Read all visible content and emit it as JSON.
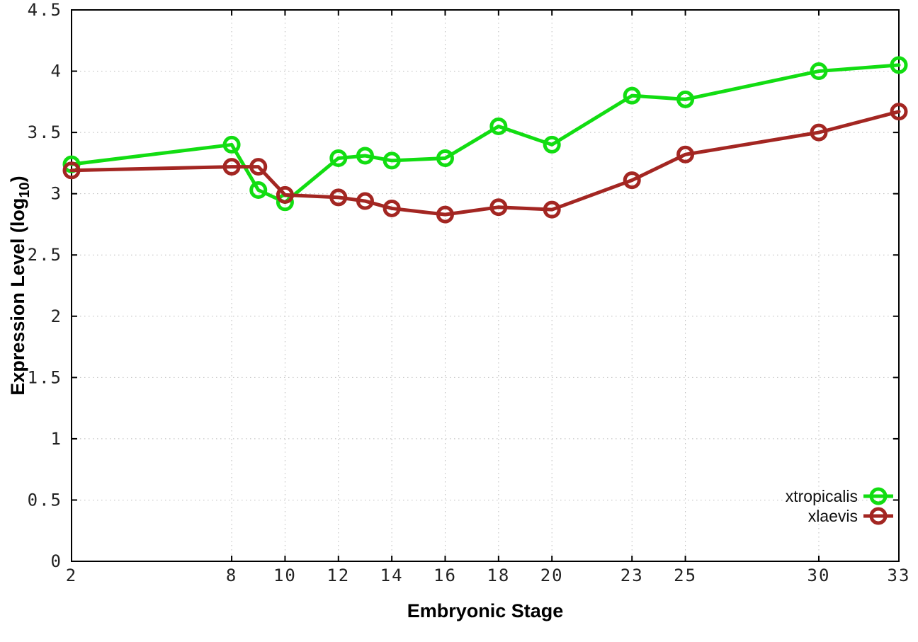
{
  "chart_data": {
    "type": "line",
    "title": "",
    "xlabel": "Embryonic Stage",
    "ylabel": "Expression Level (log10)",
    "ylabel_parts": {
      "pre": "Expression Level (log",
      "sub": "10",
      "post": ")"
    },
    "xlim": [
      2,
      33
    ],
    "ylim": [
      0,
      4.5
    ],
    "grid": true,
    "grid_style": "dotted",
    "legend_position": "bottom-right-inside",
    "x_ticks": [
      2,
      8,
      10,
      12,
      14,
      16,
      18,
      20,
      23,
      25,
      30,
      33
    ],
    "x_tick_labels": [
      "2",
      "8",
      "10",
      "12",
      "14",
      "16",
      "18",
      "20",
      "23",
      "25",
      "30",
      "33"
    ],
    "y_ticks": [
      0,
      0.5,
      1,
      1.5,
      2,
      2.5,
      3,
      3.5,
      4,
      4.5
    ],
    "y_tick_labels": [
      "0",
      "0.5",
      "1",
      "1.5",
      "2",
      "2.5",
      "3",
      "3.5",
      "4",
      "4.5"
    ],
    "x": [
      2,
      8,
      9,
      10,
      12,
      13,
      14,
      16,
      18,
      20,
      23,
      25,
      30,
      33
    ],
    "series": [
      {
        "name": "xtropicalis",
        "color": "#12dd12",
        "values": [
          3.24,
          3.4,
          3.03,
          2.93,
          3.29,
          3.31,
          3.27,
          3.29,
          3.55,
          3.4,
          3.8,
          3.77,
          4.0,
          4.05
        ]
      },
      {
        "name": "xlaevis",
        "color": "#a32622",
        "values": [
          3.19,
          3.22,
          3.22,
          2.99,
          2.97,
          2.94,
          2.88,
          2.83,
          2.89,
          2.87,
          3.11,
          3.32,
          3.5,
          3.67
        ]
      }
    ],
    "marker": "open-circle",
    "colors": {
      "axis": "#000000",
      "tick_label": "#222222",
      "grid": "#bbbbbb",
      "background": "#ffffff"
    }
  }
}
